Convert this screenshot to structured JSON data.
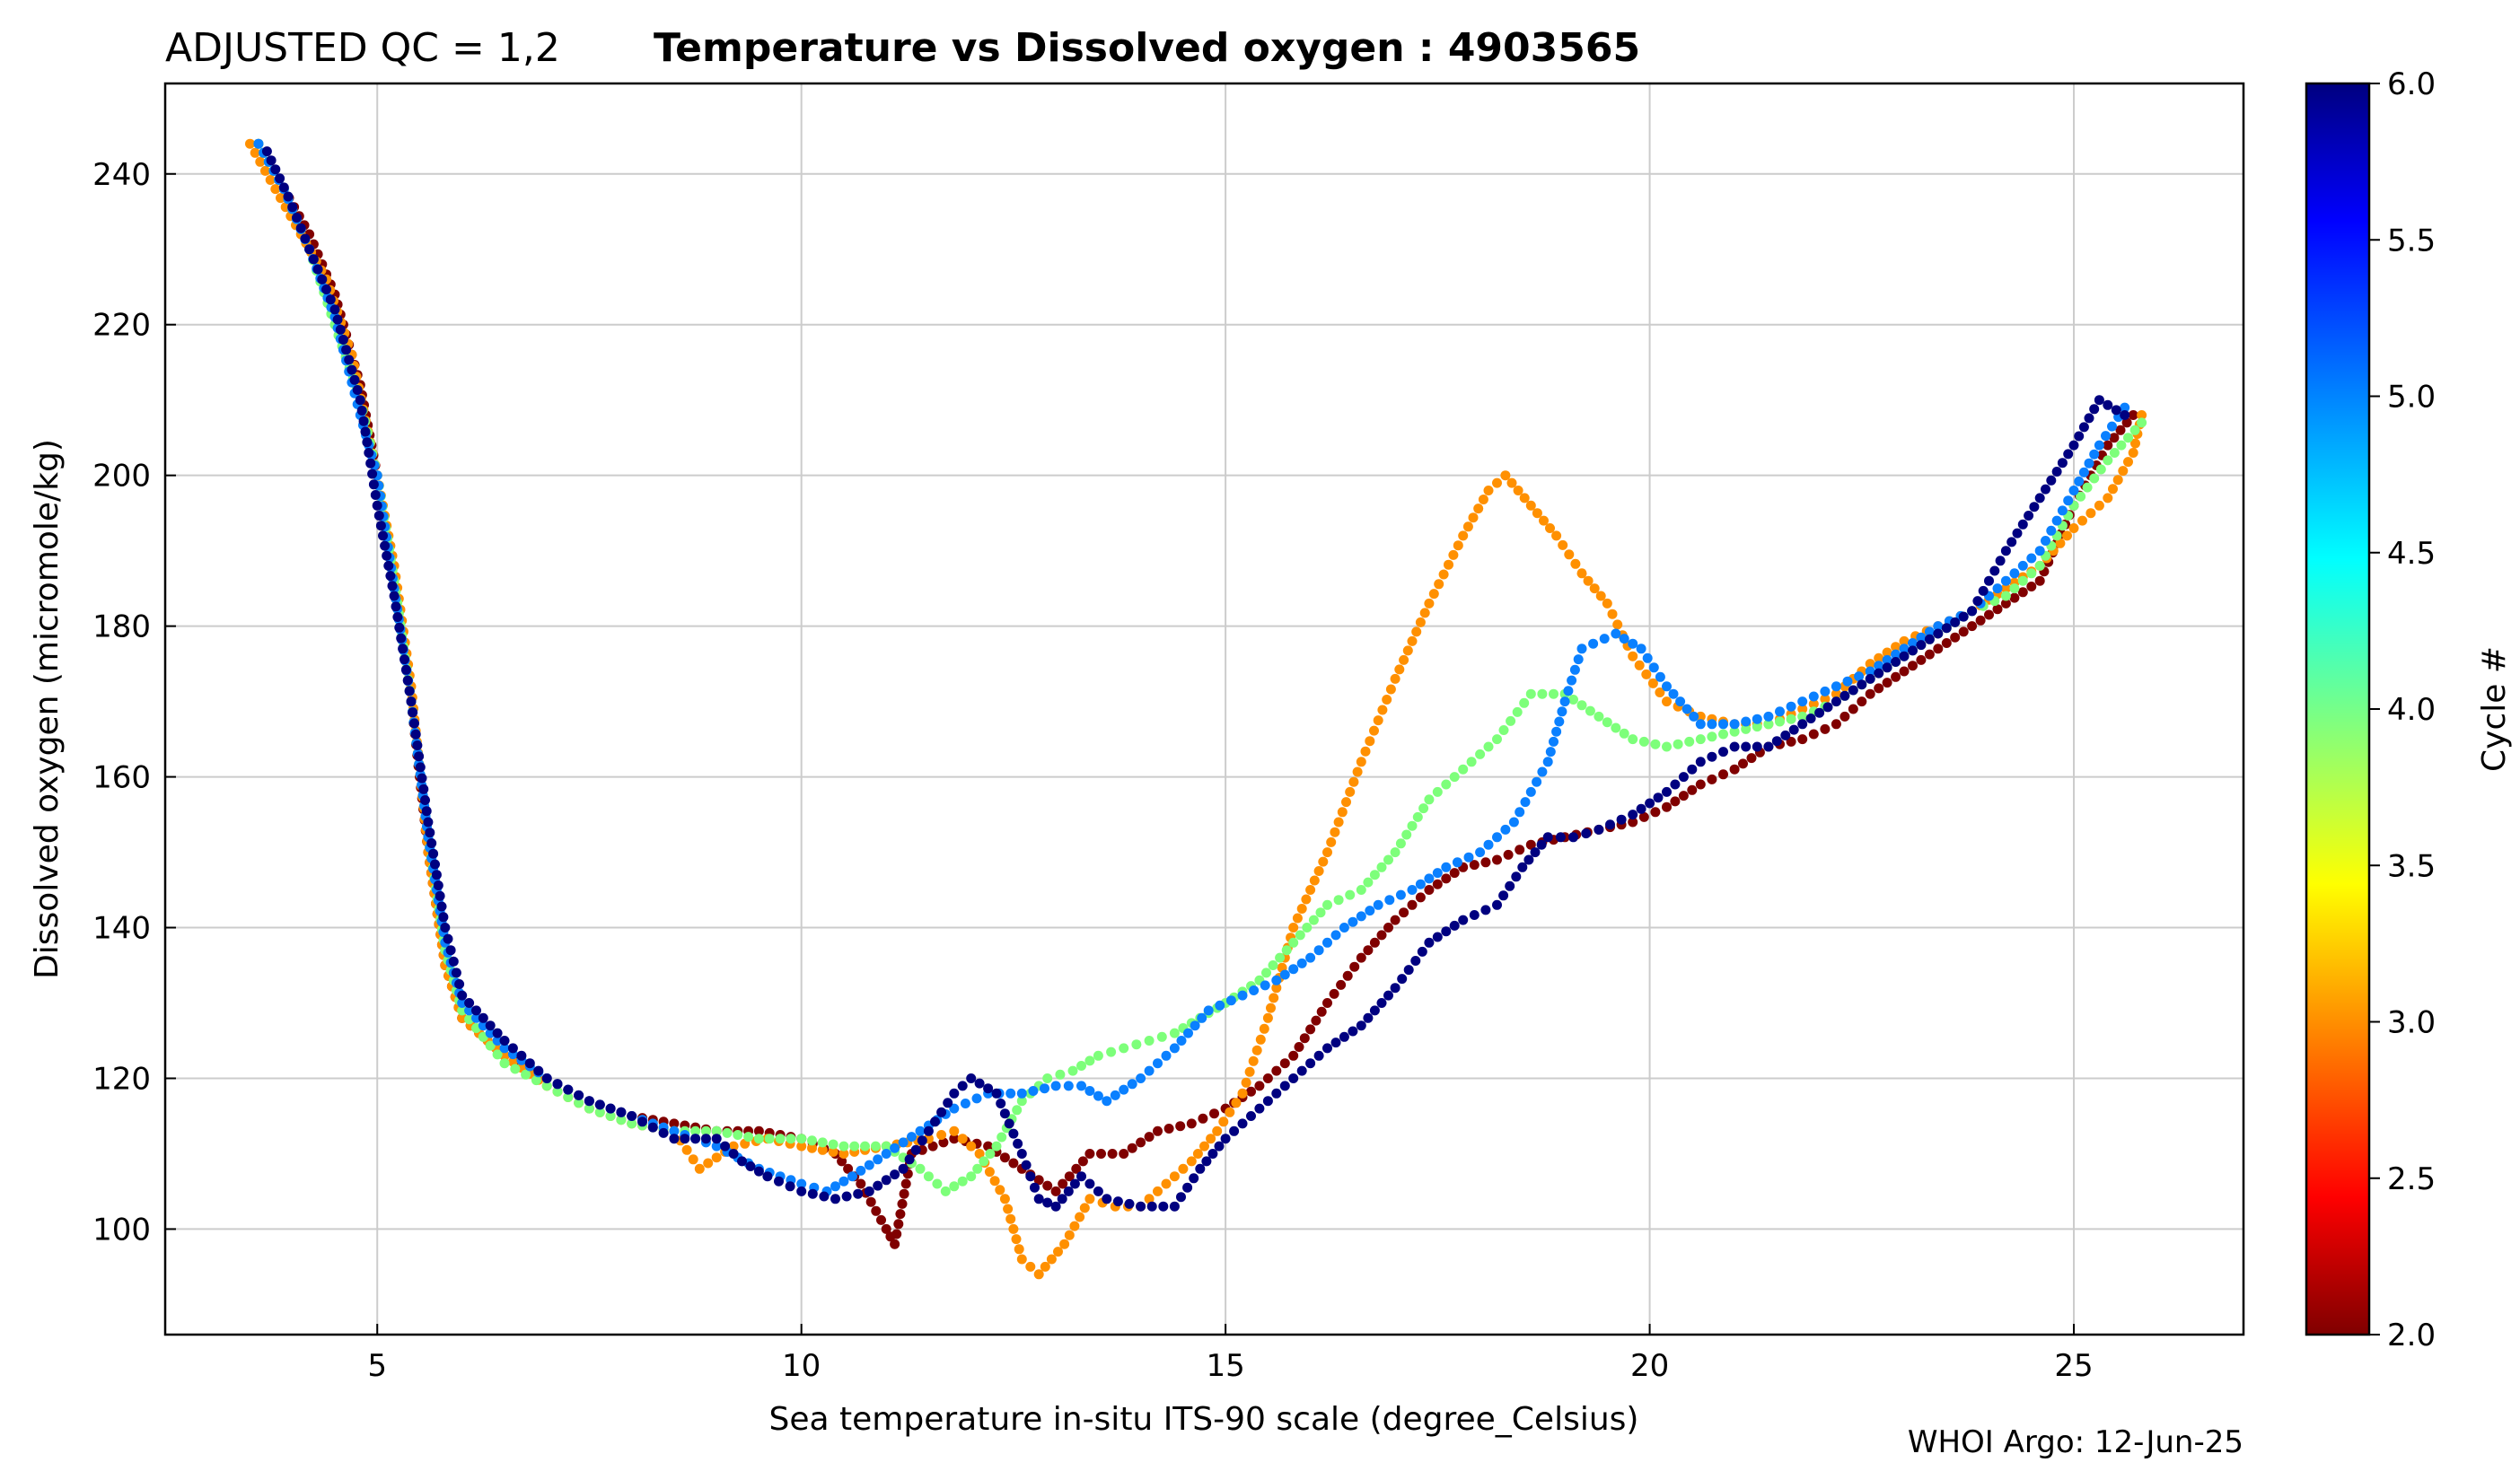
{
  "chart_data": {
    "type": "scatter",
    "title_prefix": "ADJUSTED QC = 1,2",
    "title": "Temperature vs Dissolved oxygen : 4903565",
    "xlabel": "Sea temperature in-situ ITS-90 scale  (degree_Celsius)",
    "ylabel": "Dissolved oxygen  (micromole/kg)",
    "xlim": [
      2.5,
      27.0
    ],
    "ylim": [
      86.0,
      252.0
    ],
    "xticks": [
      5,
      10,
      15,
      20,
      25
    ],
    "yticks": [
      100,
      120,
      140,
      160,
      180,
      200,
      220,
      240
    ],
    "grid": true,
    "colorbar": {
      "label": "Cycle #",
      "range": [
        2.0,
        6.0
      ],
      "ticks": [
        "2.0",
        "2.5",
        "3.0",
        "3.5",
        "4.0",
        "4.5",
        "5.0",
        "5.5",
        "6.0"
      ],
      "colormap": "jet"
    },
    "credit": "WHOI Argo: 12-Jun-25",
    "series": [
      {
        "cycle": 2,
        "color": "#800000",
        "points": [
          [
            3.6,
            244
          ],
          [
            3.9,
            238
          ],
          [
            4.2,
            232
          ],
          [
            4.5,
            224
          ],
          [
            4.8,
            212
          ],
          [
            5.0,
            200
          ],
          [
            5.2,
            185
          ],
          [
            5.4,
            170
          ],
          [
            5.6,
            150
          ],
          [
            5.8,
            135
          ],
          [
            6.0,
            128
          ],
          [
            6.5,
            123
          ],
          [
            7.0,
            120
          ],
          [
            7.5,
            117
          ],
          [
            8.0,
            115
          ],
          [
            8.5,
            114
          ],
          [
            9.0,
            113
          ],
          [
            9.5,
            113
          ],
          [
            10.0,
            112
          ],
          [
            10.4,
            110
          ],
          [
            10.7,
            106
          ],
          [
            11.0,
            100
          ],
          [
            11.1,
            98
          ],
          [
            11.3,
            110
          ],
          [
            11.8,
            112
          ],
          [
            12.2,
            111
          ],
          [
            12.6,
            108
          ],
          [
            13.0,
            105
          ],
          [
            13.4,
            110
          ],
          [
            13.8,
            110
          ],
          [
            14.2,
            113
          ],
          [
            14.6,
            114
          ],
          [
            15.0,
            116
          ],
          [
            15.4,
            119
          ],
          [
            15.8,
            123
          ],
          [
            16.2,
            130
          ],
          [
            16.6,
            136
          ],
          [
            17.0,
            141
          ],
          [
            17.4,
            145
          ],
          [
            17.8,
            148
          ],
          [
            18.2,
            149
          ],
          [
            18.6,
            151
          ],
          [
            19.0,
            152
          ],
          [
            19.4,
            153
          ],
          [
            19.8,
            154
          ],
          [
            20.2,
            156
          ],
          [
            20.6,
            159
          ],
          [
            21.0,
            161
          ],
          [
            21.4,
            164
          ],
          [
            21.8,
            165
          ],
          [
            22.2,
            167
          ],
          [
            22.6,
            171
          ],
          [
            23.0,
            174
          ],
          [
            23.4,
            177
          ],
          [
            23.8,
            180
          ],
          [
            24.2,
            183
          ],
          [
            24.6,
            186
          ],
          [
            25.0,
            196
          ],
          [
            25.4,
            204
          ],
          [
            25.7,
            208
          ]
        ]
      },
      {
        "cycle": 3,
        "color": "#ff9000",
        "points": [
          [
            3.5,
            244
          ],
          [
            3.8,
            238
          ],
          [
            4.1,
            232
          ],
          [
            4.4,
            226
          ],
          [
            4.7,
            216
          ],
          [
            5.0,
            200
          ],
          [
            5.2,
            188
          ],
          [
            5.4,
            172
          ],
          [
            5.6,
            150
          ],
          [
            5.8,
            135
          ],
          [
            6.0,
            128
          ],
          [
            6.5,
            123
          ],
          [
            7.0,
            119
          ],
          [
            7.5,
            116
          ],
          [
            8.0,
            114
          ],
          [
            8.5,
            113
          ],
          [
            8.8,
            108
          ],
          [
            9.2,
            111
          ],
          [
            9.6,
            112
          ],
          [
            10.0,
            111
          ],
          [
            10.5,
            110
          ],
          [
            11.0,
            111
          ],
          [
            11.5,
            112
          ],
          [
            11.8,
            113
          ],
          [
            12.1,
            110
          ],
          [
            12.4,
            104
          ],
          [
            12.6,
            96
          ],
          [
            12.8,
            94
          ],
          [
            13.1,
            98
          ],
          [
            13.4,
            104
          ],
          [
            13.7,
            103
          ],
          [
            14.0,
            103
          ],
          [
            14.3,
            106
          ],
          [
            14.6,
            109
          ],
          [
            14.9,
            113
          ],
          [
            15.2,
            118
          ],
          [
            15.5,
            128
          ],
          [
            15.8,
            140
          ],
          [
            16.2,
            150
          ],
          [
            16.6,
            162
          ],
          [
            17.0,
            173
          ],
          [
            17.4,
            183
          ],
          [
            17.8,
            192
          ],
          [
            18.1,
            198
          ],
          [
            18.3,
            200
          ],
          [
            18.6,
            196
          ],
          [
            18.9,
            192
          ],
          [
            19.2,
            187
          ],
          [
            19.5,
            183
          ],
          [
            19.8,
            176
          ],
          [
            20.2,
            170
          ],
          [
            20.6,
            168
          ],
          [
            21.0,
            167
          ],
          [
            21.4,
            167
          ],
          [
            21.8,
            169
          ],
          [
            22.2,
            171
          ],
          [
            22.6,
            175
          ],
          [
            23.0,
            178
          ],
          [
            23.4,
            180
          ],
          [
            23.8,
            182
          ],
          [
            24.2,
            185
          ],
          [
            24.6,
            188
          ],
          [
            25.0,
            193
          ],
          [
            25.4,
            197
          ],
          [
            25.7,
            203
          ],
          [
            25.8,
            208
          ]
        ]
      },
      {
        "cycle": 4,
        "color": "#7dff7a",
        "points": [
          [
            3.6,
            244
          ],
          [
            3.9,
            238
          ],
          [
            4.2,
            230
          ],
          [
            4.5,
            220
          ],
          [
            4.8,
            210
          ],
          [
            5.0,
            200
          ],
          [
            5.2,
            186
          ],
          [
            5.4,
            170
          ],
          [
            5.6,
            152
          ],
          [
            5.8,
            137
          ],
          [
            6.0,
            129
          ],
          [
            6.5,
            122
          ],
          [
            7.0,
            119
          ],
          [
            7.5,
            116
          ],
          [
            8.0,
            114
          ],
          [
            8.5,
            113
          ],
          [
            9.0,
            113
          ],
          [
            9.5,
            112
          ],
          [
            10.0,
            112
          ],
          [
            10.5,
            111
          ],
          [
            11.0,
            111
          ],
          [
            11.4,
            108
          ],
          [
            11.7,
            105
          ],
          [
            12.0,
            107
          ],
          [
            12.3,
            111
          ],
          [
            12.6,
            117
          ],
          [
            12.9,
            120
          ],
          [
            13.2,
            121
          ],
          [
            13.5,
            123
          ],
          [
            13.8,
            124
          ],
          [
            14.1,
            125
          ],
          [
            14.4,
            126
          ],
          [
            14.7,
            128
          ],
          [
            15.0,
            130
          ],
          [
            15.4,
            133
          ],
          [
            15.8,
            138
          ],
          [
            16.2,
            143
          ],
          [
            16.6,
            145
          ],
          [
            17.0,
            150
          ],
          [
            17.4,
            157
          ],
          [
            17.8,
            161
          ],
          [
            18.2,
            165
          ],
          [
            18.6,
            171
          ],
          [
            19.0,
            171
          ],
          [
            19.4,
            168
          ],
          [
            19.8,
            165
          ],
          [
            20.2,
            164
          ],
          [
            20.6,
            165
          ],
          [
            21.0,
            166
          ],
          [
            21.4,
            167
          ],
          [
            21.8,
            168
          ],
          [
            22.2,
            170
          ],
          [
            22.6,
            173
          ],
          [
            23.0,
            176
          ],
          [
            23.4,
            179
          ],
          [
            23.8,
            182
          ],
          [
            24.2,
            184
          ],
          [
            24.6,
            188
          ],
          [
            25.0,
            196
          ],
          [
            25.4,
            202
          ],
          [
            25.8,
            207
          ]
        ]
      },
      {
        "cycle": 5,
        "color": "#0a80ff",
        "points": [
          [
            3.6,
            244
          ],
          [
            3.9,
            238
          ],
          [
            4.2,
            230
          ],
          [
            4.5,
            221
          ],
          [
            4.8,
            208
          ],
          [
            5.0,
            200
          ],
          [
            5.2,
            185
          ],
          [
            5.4,
            170
          ],
          [
            5.6,
            152
          ],
          [
            5.8,
            138
          ],
          [
            6.0,
            130
          ],
          [
            6.5,
            124
          ],
          [
            7.0,
            120
          ],
          [
            7.5,
            117
          ],
          [
            8.0,
            115
          ],
          [
            8.5,
            113
          ],
          [
            9.0,
            111
          ],
          [
            9.5,
            108
          ],
          [
            10.0,
            106
          ],
          [
            10.3,
            105
          ],
          [
            10.6,
            107
          ],
          [
            11.0,
            110
          ],
          [
            11.4,
            113
          ],
          [
            11.8,
            116
          ],
          [
            12.2,
            118
          ],
          [
            12.6,
            118
          ],
          [
            13.0,
            119
          ],
          [
            13.3,
            119
          ],
          [
            13.6,
            117
          ],
          [
            14.0,
            120
          ],
          [
            14.4,
            124
          ],
          [
            14.8,
            129
          ],
          [
            15.2,
            131
          ],
          [
            15.6,
            133
          ],
          [
            16.0,
            136
          ],
          [
            16.4,
            140
          ],
          [
            16.8,
            143
          ],
          [
            17.2,
            145
          ],
          [
            17.6,
            148
          ],
          [
            18.0,
            150
          ],
          [
            18.4,
            154
          ],
          [
            18.8,
            162
          ],
          [
            19.0,
            170
          ],
          [
            19.2,
            177
          ],
          [
            19.6,
            179
          ],
          [
            19.9,
            177
          ],
          [
            20.2,
            172
          ],
          [
            20.6,
            167
          ],
          [
            21.0,
            167
          ],
          [
            21.4,
            168
          ],
          [
            21.8,
            170
          ],
          [
            22.2,
            172
          ],
          [
            22.6,
            174
          ],
          [
            23.0,
            177
          ],
          [
            23.4,
            180
          ],
          [
            23.8,
            182
          ],
          [
            24.2,
            186
          ],
          [
            24.6,
            190
          ],
          [
            25.0,
            198
          ],
          [
            25.3,
            204
          ],
          [
            25.6,
            209
          ]
        ]
      },
      {
        "cycle": 6,
        "color": "#000080",
        "points": [
          [
            3.7,
            243
          ],
          [
            3.95,
            237
          ],
          [
            4.2,
            230
          ],
          [
            4.5,
            222
          ],
          [
            4.8,
            210
          ],
          [
            5.0,
            196
          ],
          [
            5.2,
            184
          ],
          [
            5.4,
            170
          ],
          [
            5.6,
            154
          ],
          [
            5.8,
            140
          ],
          [
            6.0,
            131
          ],
          [
            6.5,
            125
          ],
          [
            7.0,
            120
          ],
          [
            7.5,
            117
          ],
          [
            8.0,
            115
          ],
          [
            8.5,
            112
          ],
          [
            9.0,
            112
          ],
          [
            9.3,
            109
          ],
          [
            9.6,
            107
          ],
          [
            10.0,
            105
          ],
          [
            10.4,
            104
          ],
          [
            10.8,
            105
          ],
          [
            11.2,
            108
          ],
          [
            11.5,
            113
          ],
          [
            11.8,
            118
          ],
          [
            12.0,
            120
          ],
          [
            12.3,
            118
          ],
          [
            12.6,
            110
          ],
          [
            12.8,
            104
          ],
          [
            13.0,
            103
          ],
          [
            13.3,
            107
          ],
          [
            13.6,
            104
          ],
          [
            14.0,
            103
          ],
          [
            14.4,
            103
          ],
          [
            14.7,
            108
          ],
          [
            15.0,
            112
          ],
          [
            15.4,
            116
          ],
          [
            15.8,
            120
          ],
          [
            16.2,
            124
          ],
          [
            16.6,
            127
          ],
          [
            17.0,
            132
          ],
          [
            17.4,
            138
          ],
          [
            17.8,
            141
          ],
          [
            18.2,
            143
          ],
          [
            18.5,
            148
          ],
          [
            18.8,
            152
          ],
          [
            19.1,
            152
          ],
          [
            19.4,
            153
          ],
          [
            19.8,
            155
          ],
          [
            20.2,
            158
          ],
          [
            20.6,
            162
          ],
          [
            21.0,
            164
          ],
          [
            21.4,
            164
          ],
          [
            21.8,
            167
          ],
          [
            22.2,
            170
          ],
          [
            22.6,
            173
          ],
          [
            23.0,
            176
          ],
          [
            23.4,
            179
          ],
          [
            23.8,
            182
          ],
          [
            24.2,
            190
          ],
          [
            24.6,
            197
          ],
          [
            25.0,
            204
          ],
          [
            25.3,
            210
          ],
          [
            25.6,
            208
          ]
        ]
      }
    ]
  }
}
